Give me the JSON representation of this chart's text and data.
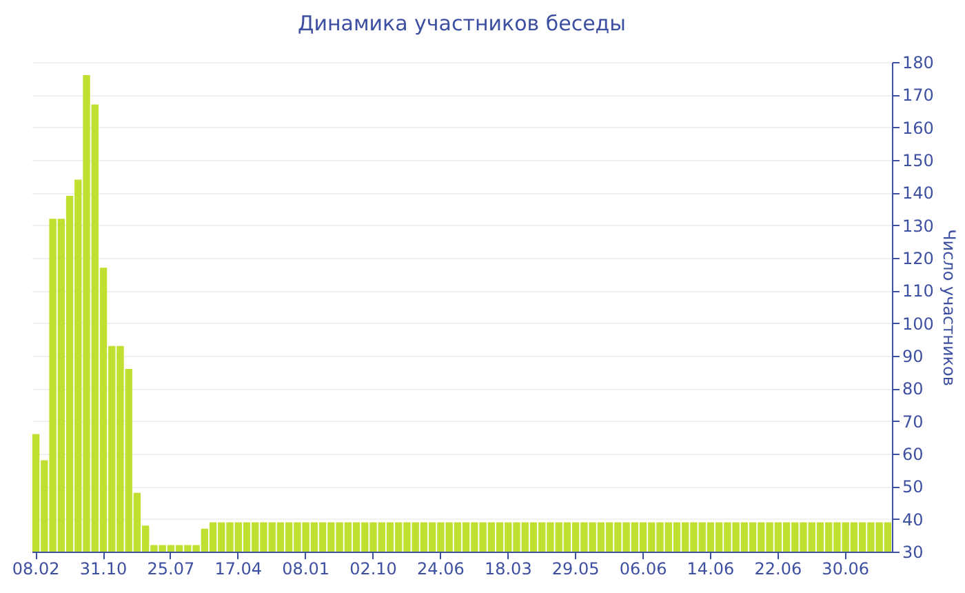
{
  "chart_data": {
    "type": "bar",
    "title": "Динамика участников беседы",
    "ylabel": "Число участников",
    "categories": [
      "08.02",
      null,
      null,
      null,
      null,
      null,
      null,
      null,
      "31.10",
      null,
      null,
      null,
      null,
      null,
      null,
      null,
      "25.07",
      null,
      null,
      null,
      null,
      null,
      null,
      null,
      "17.04",
      null,
      null,
      null,
      null,
      null,
      null,
      null,
      "08.01",
      null,
      null,
      null,
      null,
      null,
      null,
      null,
      "02.10",
      null,
      null,
      null,
      null,
      null,
      null,
      null,
      "24.06",
      null,
      null,
      null,
      null,
      null,
      null,
      null,
      "18.03",
      null,
      null,
      null,
      null,
      null,
      null,
      null,
      "29.05",
      null,
      null,
      null,
      null,
      null,
      null,
      null,
      "06.06",
      null,
      null,
      null,
      null,
      null,
      null,
      null,
      "14.06",
      null,
      null,
      null,
      null,
      null,
      null,
      null,
      "22.06",
      null,
      null,
      null,
      null,
      null,
      null,
      null,
      "30.06",
      null,
      null,
      null,
      null,
      null
    ],
    "values": [
      66,
      58,
      132,
      132,
      139,
      144,
      176,
      167,
      117,
      93,
      93,
      86,
      48,
      38,
      32,
      32,
      32,
      32,
      32,
      32,
      37,
      39,
      39,
      39,
      39,
      39,
      39,
      39,
      39,
      39,
      39,
      39,
      39,
      39,
      39,
      39,
      39,
      39,
      39,
      39,
      39,
      39,
      39,
      39,
      39,
      39,
      39,
      39,
      39,
      39,
      39,
      39,
      39,
      39,
      39,
      39,
      39,
      39,
      39,
      39,
      39,
      39,
      39,
      39,
      39,
      39,
      39,
      39,
      39,
      39,
      39,
      39,
      39,
      39,
      39,
      39,
      39,
      39,
      39,
      39,
      39,
      39,
      39,
      39,
      39,
      39,
      39,
      39,
      39,
      39,
      39,
      39,
      39,
      39,
      39,
      39,
      39,
      39,
      39,
      39,
      39,
      39
    ],
    "color": "#bfe030",
    "ylim": [
      30,
      180
    ],
    "yticks": [
      30,
      40,
      50,
      60,
      70,
      80,
      90,
      100,
      110,
      120,
      130,
      140,
      150,
      160,
      170,
      180
    ],
    "grid": "y"
  }
}
